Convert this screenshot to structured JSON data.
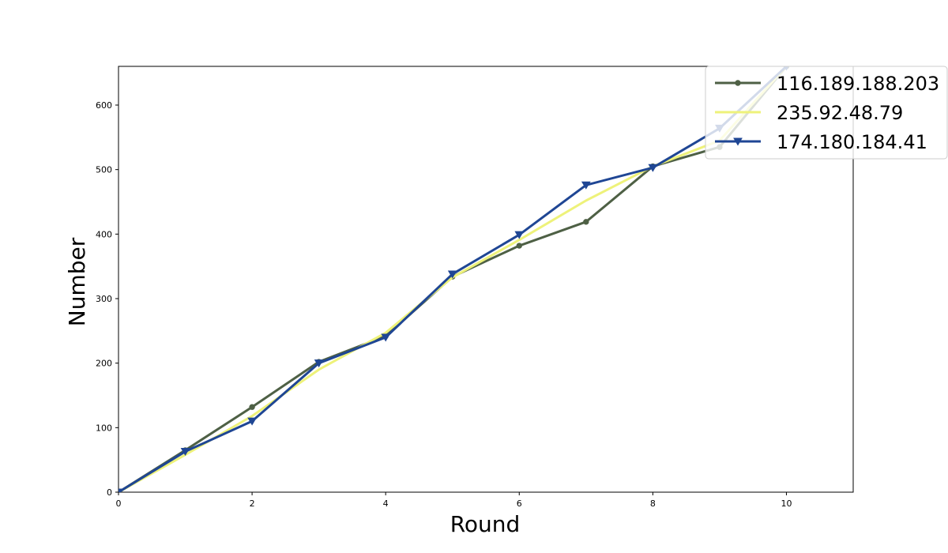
{
  "chart_data": {
    "type": "line",
    "title": "",
    "xlabel": "Round",
    "ylabel": "Number",
    "xlim": [
      0,
      11
    ],
    "ylim": [
      0,
      660
    ],
    "xticks": [
      0,
      2,
      4,
      6,
      8,
      10
    ],
    "yticks": [
      0,
      100,
      200,
      300,
      400,
      500,
      600
    ],
    "grid": false,
    "legend_position": "top-right",
    "x": [
      0,
      1,
      2,
      3,
      4,
      5,
      6,
      7,
      8,
      9,
      10
    ],
    "series": [
      {
        "name": "116.189.188.203",
        "color": "#4e6045",
        "marker": "circle",
        "values": [
          0,
          65,
          132,
          202,
          242,
          334,
          382,
          419,
          505,
          535,
          660
        ]
      },
      {
        "name": "235.92.48.79",
        "color": "#eef27a",
        "marker": "none",
        "values": [
          0,
          58,
          118,
          190,
          247,
          333,
          391,
          452,
          505,
          545,
          660
        ]
      },
      {
        "name": "174.180.184.41",
        "color": "#1f4694",
        "marker": "triangle-down",
        "values": [
          0,
          63,
          110,
          200,
          240,
          338,
          399,
          476,
          503,
          564,
          660
        ]
      }
    ]
  }
}
